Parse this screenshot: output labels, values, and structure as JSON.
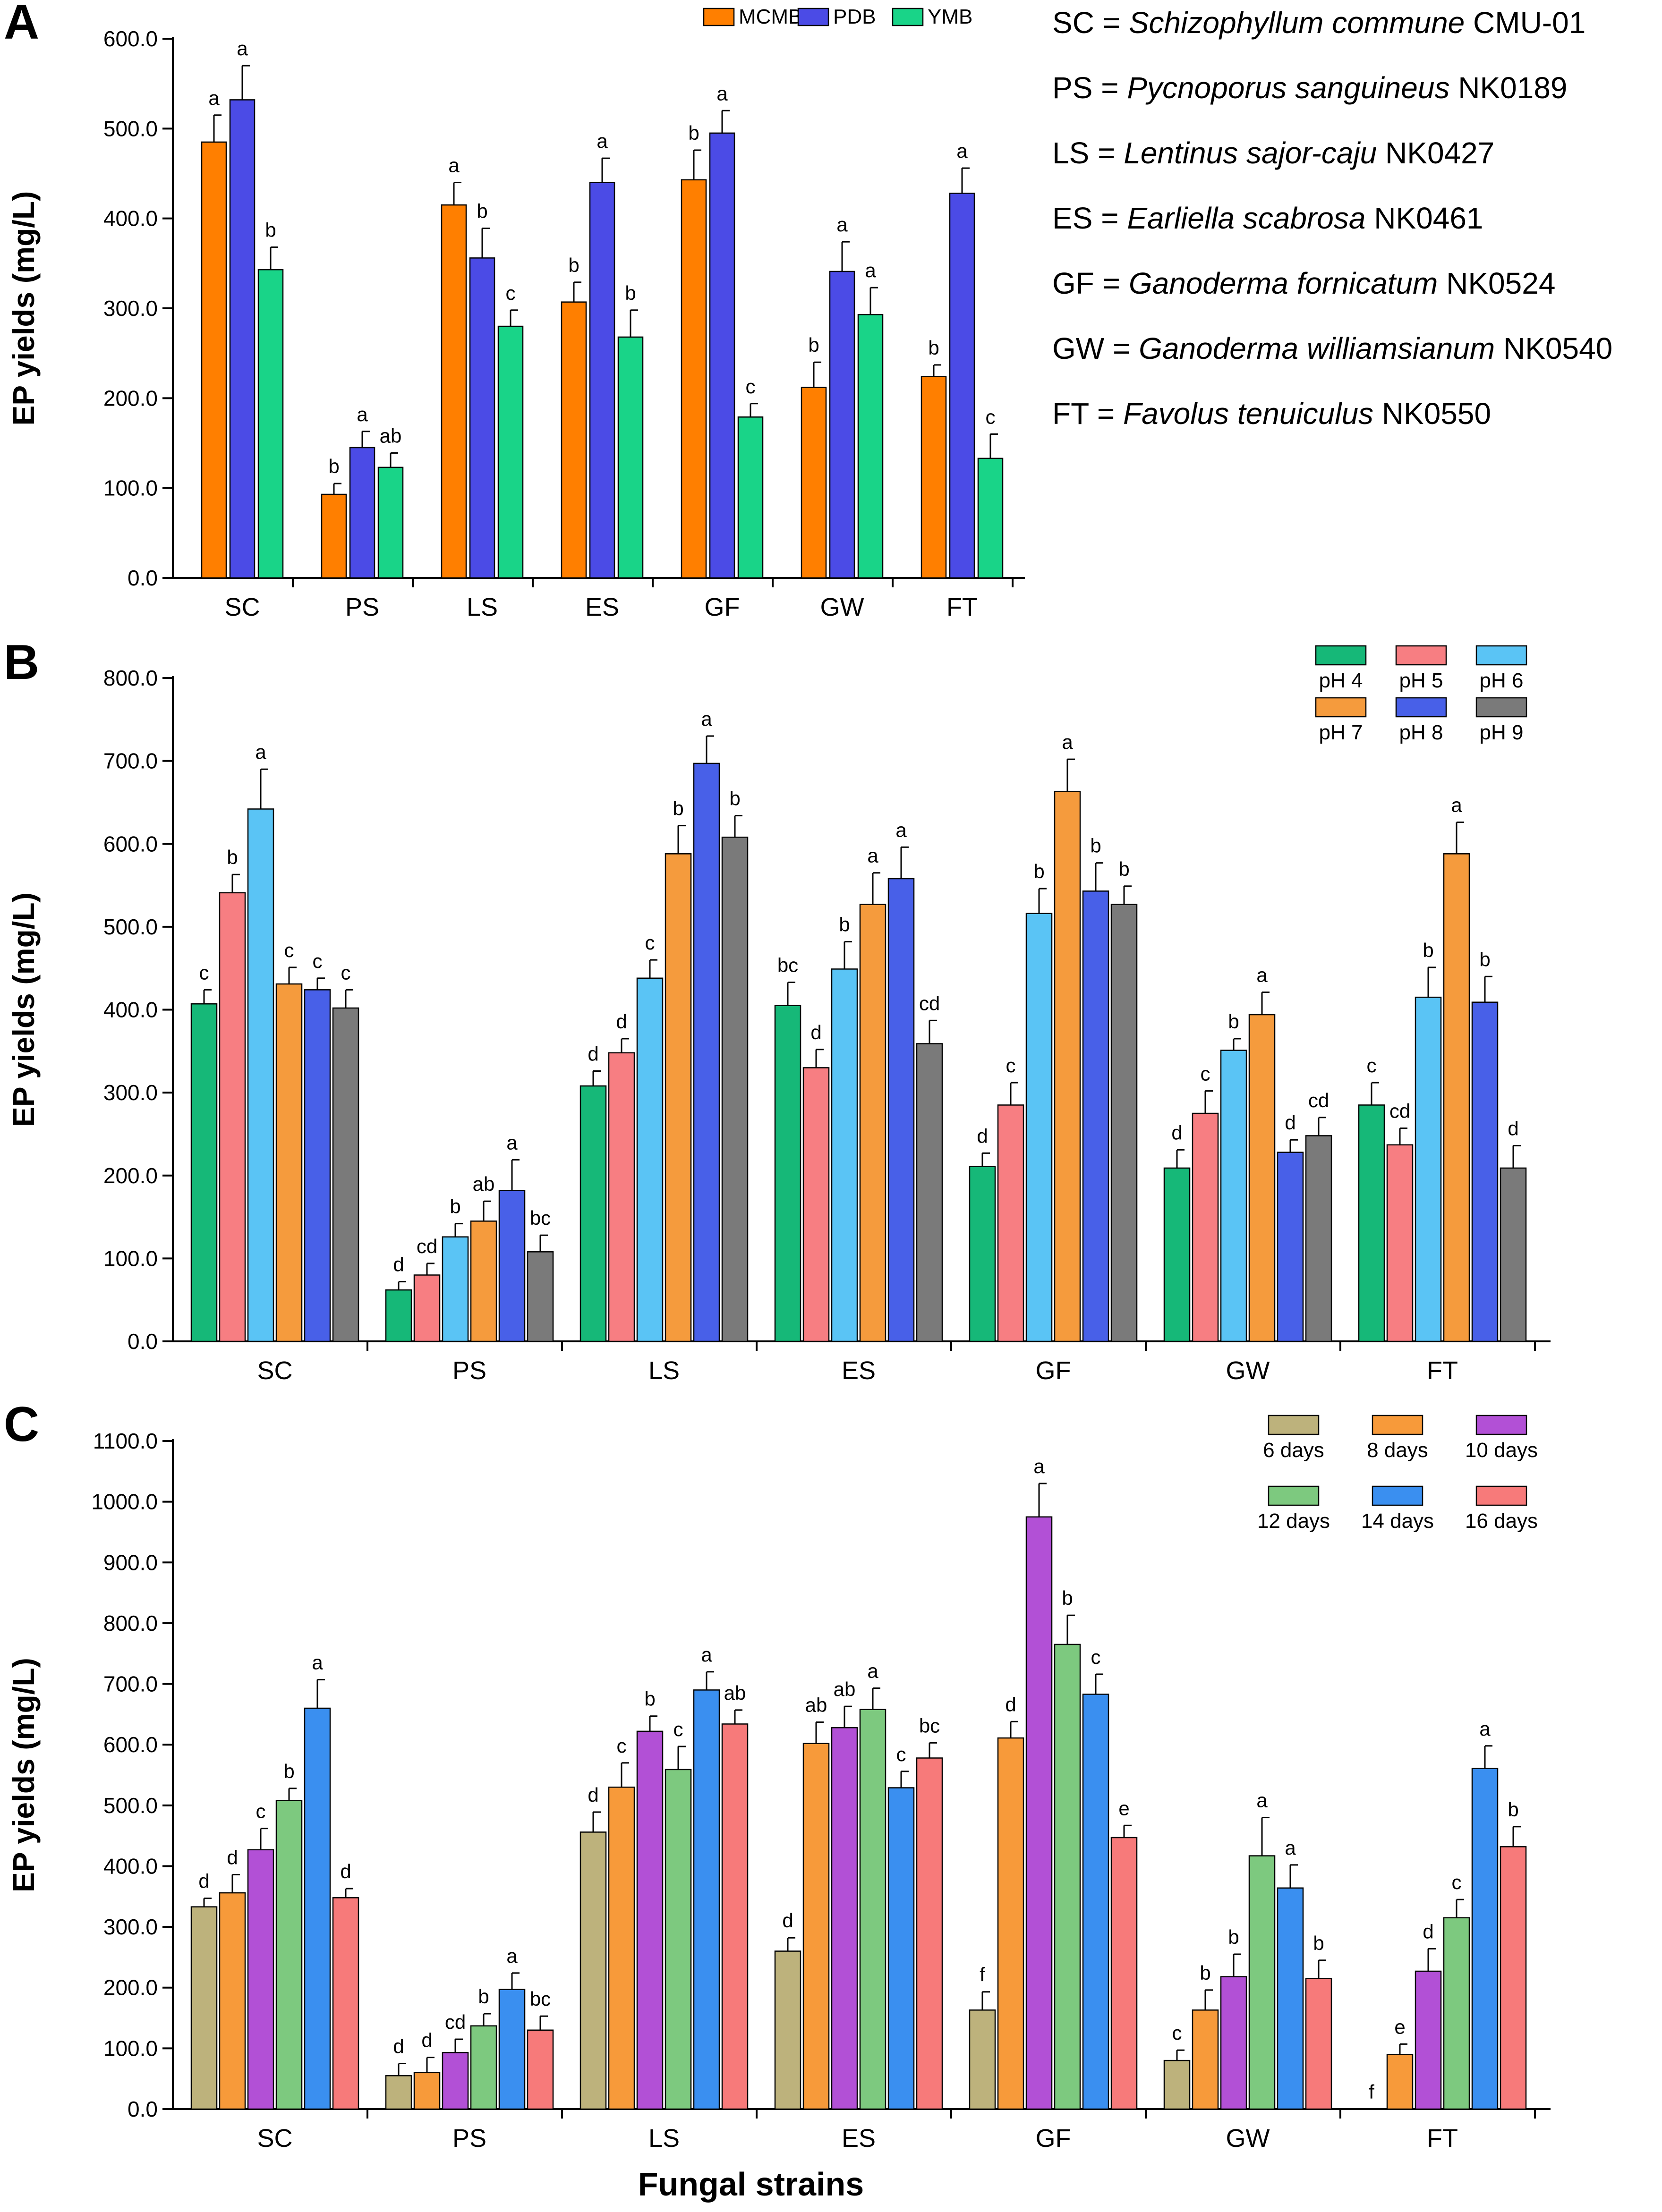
{
  "figure": {
    "xlabel": "Fungal strains",
    "abbreviations": [
      {
        "code": "SC",
        "species": "Schizophyllum commune",
        "strain": "CMU-01"
      },
      {
        "code": "PS",
        "species": "Pycnoporus sanguineus",
        "strain": "NK0189"
      },
      {
        "code": "LS",
        "species": "Lentinus sajor-caju",
        "strain": "NK0427"
      },
      {
        "code": "ES",
        "species": "Earliella scabrosa",
        "strain": "NK0461"
      },
      {
        "code": "GF",
        "species": "Ganoderma fornicatum",
        "strain": "NK0524"
      },
      {
        "code": "GW",
        "species": "Ganoderma williamsianum",
        "strain": "NK0540"
      },
      {
        "code": "FT",
        "species": "Favolus tenuiculus",
        "strain": "NK0550"
      }
    ]
  },
  "chart_data": [
    {
      "panel": "A",
      "type": "bar",
      "ylabel": "EP yields (mg/L)",
      "ylim": [
        0,
        600
      ],
      "yticks": [
        "0.0",
        "100.0",
        "200.0",
        "300.0",
        "400.0",
        "500.0",
        "600.0"
      ],
      "legend_position": "top-right",
      "categories": [
        "SC",
        "PS",
        "LS",
        "ES",
        "GF",
        "GW",
        "FT"
      ],
      "series": [
        {
          "name": "MCMB",
          "color": "#FF7F00",
          "values": [
            485,
            93,
            415,
            307,
            443,
            212,
            224
          ],
          "errors": [
            30,
            12,
            25,
            22,
            33,
            28,
            13
          ],
          "labels": [
            "a",
            "b",
            "a",
            "b",
            "b",
            "b",
            "b"
          ]
        },
        {
          "name": "PDB",
          "color": "#4B4BE6",
          "values": [
            532,
            145,
            356,
            440,
            495,
            341,
            428
          ],
          "errors": [
            38,
            18,
            33,
            27,
            25,
            33,
            28
          ],
          "labels": [
            "a",
            "a",
            "b",
            "a",
            "a",
            "a",
            "a"
          ]
        },
        {
          "name": "YMB",
          "color": "#19D488",
          "values": [
            343,
            123,
            280,
            268,
            179,
            293,
            133
          ],
          "errors": [
            25,
            16,
            18,
            30,
            15,
            30,
            27
          ],
          "labels": [
            "b",
            "ab",
            "c",
            "b",
            "c",
            "a",
            "c"
          ]
        }
      ]
    },
    {
      "panel": "B",
      "type": "bar",
      "ylabel": "EP yields (mg/L)",
      "ylim": [
        0,
        800
      ],
      "yticks": [
        "0.0",
        "100.0",
        "200.0",
        "300.0",
        "400.0",
        "500.0",
        "600.0",
        "700.0",
        "800.0"
      ],
      "legend_position": "top-right",
      "categories": [
        "SC",
        "PS",
        "LS",
        "ES",
        "GF",
        "GW",
        "FT"
      ],
      "series": [
        {
          "name": "pH 4",
          "color": "#16B878",
          "values": [
            407,
            62,
            308,
            405,
            211,
            209,
            285
          ],
          "errors": [
            17,
            10,
            18,
            28,
            16,
            22,
            27
          ],
          "labels": [
            "c",
            "d",
            "d",
            "bc",
            "d",
            "d",
            "c"
          ]
        },
        {
          "name": "pH 5",
          "color": "#F77E82",
          "values": [
            541,
            80,
            348,
            330,
            285,
            275,
            237
          ],
          "errors": [
            22,
            14,
            17,
            22,
            27,
            27,
            20
          ],
          "labels": [
            "b",
            "cd",
            "d",
            "d",
            "c",
            "c",
            "cd"
          ]
        },
        {
          "name": "pH 6",
          "color": "#5AC4F5",
          "values": [
            642,
            126,
            438,
            449,
            516,
            351,
            415
          ],
          "errors": [
            48,
            16,
            22,
            33,
            30,
            14,
            36
          ],
          "labels": [
            "a",
            "b",
            "c",
            "b",
            "b",
            "b",
            "b"
          ]
        },
        {
          "name": "pH 7",
          "color": "#F59B3D",
          "values": [
            431,
            145,
            588,
            527,
            663,
            394,
            588
          ],
          "errors": [
            20,
            24,
            34,
            38,
            39,
            27,
            38
          ],
          "labels": [
            "c",
            "ab",
            "b",
            "a",
            "a",
            "a",
            "a"
          ]
        },
        {
          "name": "pH 8",
          "color": "#4860E8",
          "values": [
            424,
            182,
            697,
            558,
            543,
            228,
            409
          ],
          "errors": [
            14,
            37,
            33,
            38,
            34,
            15,
            31
          ],
          "labels": [
            "c",
            "a",
            "a",
            "a",
            "b",
            "d",
            "b"
          ]
        },
        {
          "name": "pH 9",
          "color": "#7A7A7A",
          "values": [
            402,
            108,
            608,
            359,
            527,
            248,
            209
          ],
          "errors": [
            22,
            20,
            26,
            28,
            22,
            22,
            27
          ],
          "labels": [
            "c",
            "bc",
            "b",
            "cd",
            "b",
            "cd",
            "d"
          ]
        }
      ]
    },
    {
      "panel": "C",
      "type": "bar",
      "ylabel": "EP yields (mg/L)",
      "ylim": [
        0,
        1100
      ],
      "yticks": [
        "0.0",
        "100.0",
        "200.0",
        "300.0",
        "400.0",
        "500.0",
        "600.0",
        "700.0",
        "800.0",
        "900.0",
        "1000.0",
        "1100.0"
      ],
      "legend_position": "top-right",
      "categories": [
        "SC",
        "PS",
        "LS",
        "ES",
        "GF",
        "GW",
        "FT"
      ],
      "series": [
        {
          "name": "6 days",
          "color": "#BDB27C",
          "values": [
            333,
            55,
            456,
            260,
            163,
            80,
            0
          ],
          "errors": [
            14,
            20,
            33,
            22,
            30,
            17,
            0
          ],
          "labels": [
            "d",
            "d",
            "d",
            "d",
            "f",
            "c",
            "f"
          ]
        },
        {
          "name": "8 days",
          "color": "#F79A3A",
          "values": [
            356,
            60,
            530,
            602,
            611,
            163,
            90
          ],
          "errors": [
            30,
            25,
            40,
            35,
            27,
            33,
            17
          ],
          "labels": [
            "d",
            "d",
            "c",
            "ab",
            "d",
            "b",
            "e"
          ]
        },
        {
          "name": "10 days",
          "color": "#B250D6",
          "values": [
            427,
            93,
            622,
            628,
            975,
            218,
            227
          ],
          "errors": [
            35,
            22,
            25,
            35,
            55,
            37,
            37
          ],
          "labels": [
            "c",
            "cd",
            "b",
            "ab",
            "a",
            "b",
            "d"
          ]
        },
        {
          "name": "12 days",
          "color": "#7DC97F",
          "values": [
            508,
            137,
            559,
            658,
            765,
            417,
            315
          ],
          "errors": [
            20,
            20,
            38,
            35,
            48,
            63,
            30
          ],
          "labels": [
            "b",
            "b",
            "c",
            "a",
            "b",
            "a",
            "c"
          ]
        },
        {
          "name": "14 days",
          "color": "#3A8FF0",
          "values": [
            660,
            197,
            690,
            529,
            683,
            364,
            561
          ],
          "errors": [
            47,
            27,
            30,
            27,
            33,
            38,
            37
          ],
          "labels": [
            "a",
            "a",
            "a",
            "c",
            "c",
            "a",
            "a"
          ]
        },
        {
          "name": "16 days",
          "color": "#F77A7A",
          "values": [
            348,
            130,
            634,
            578,
            447,
            215,
            432
          ],
          "errors": [
            15,
            23,
            23,
            25,
            20,
            30,
            33
          ],
          "labels": [
            "d",
            "bc",
            "ab",
            "bc",
            "e",
            "b",
            "b"
          ]
        }
      ]
    }
  ]
}
